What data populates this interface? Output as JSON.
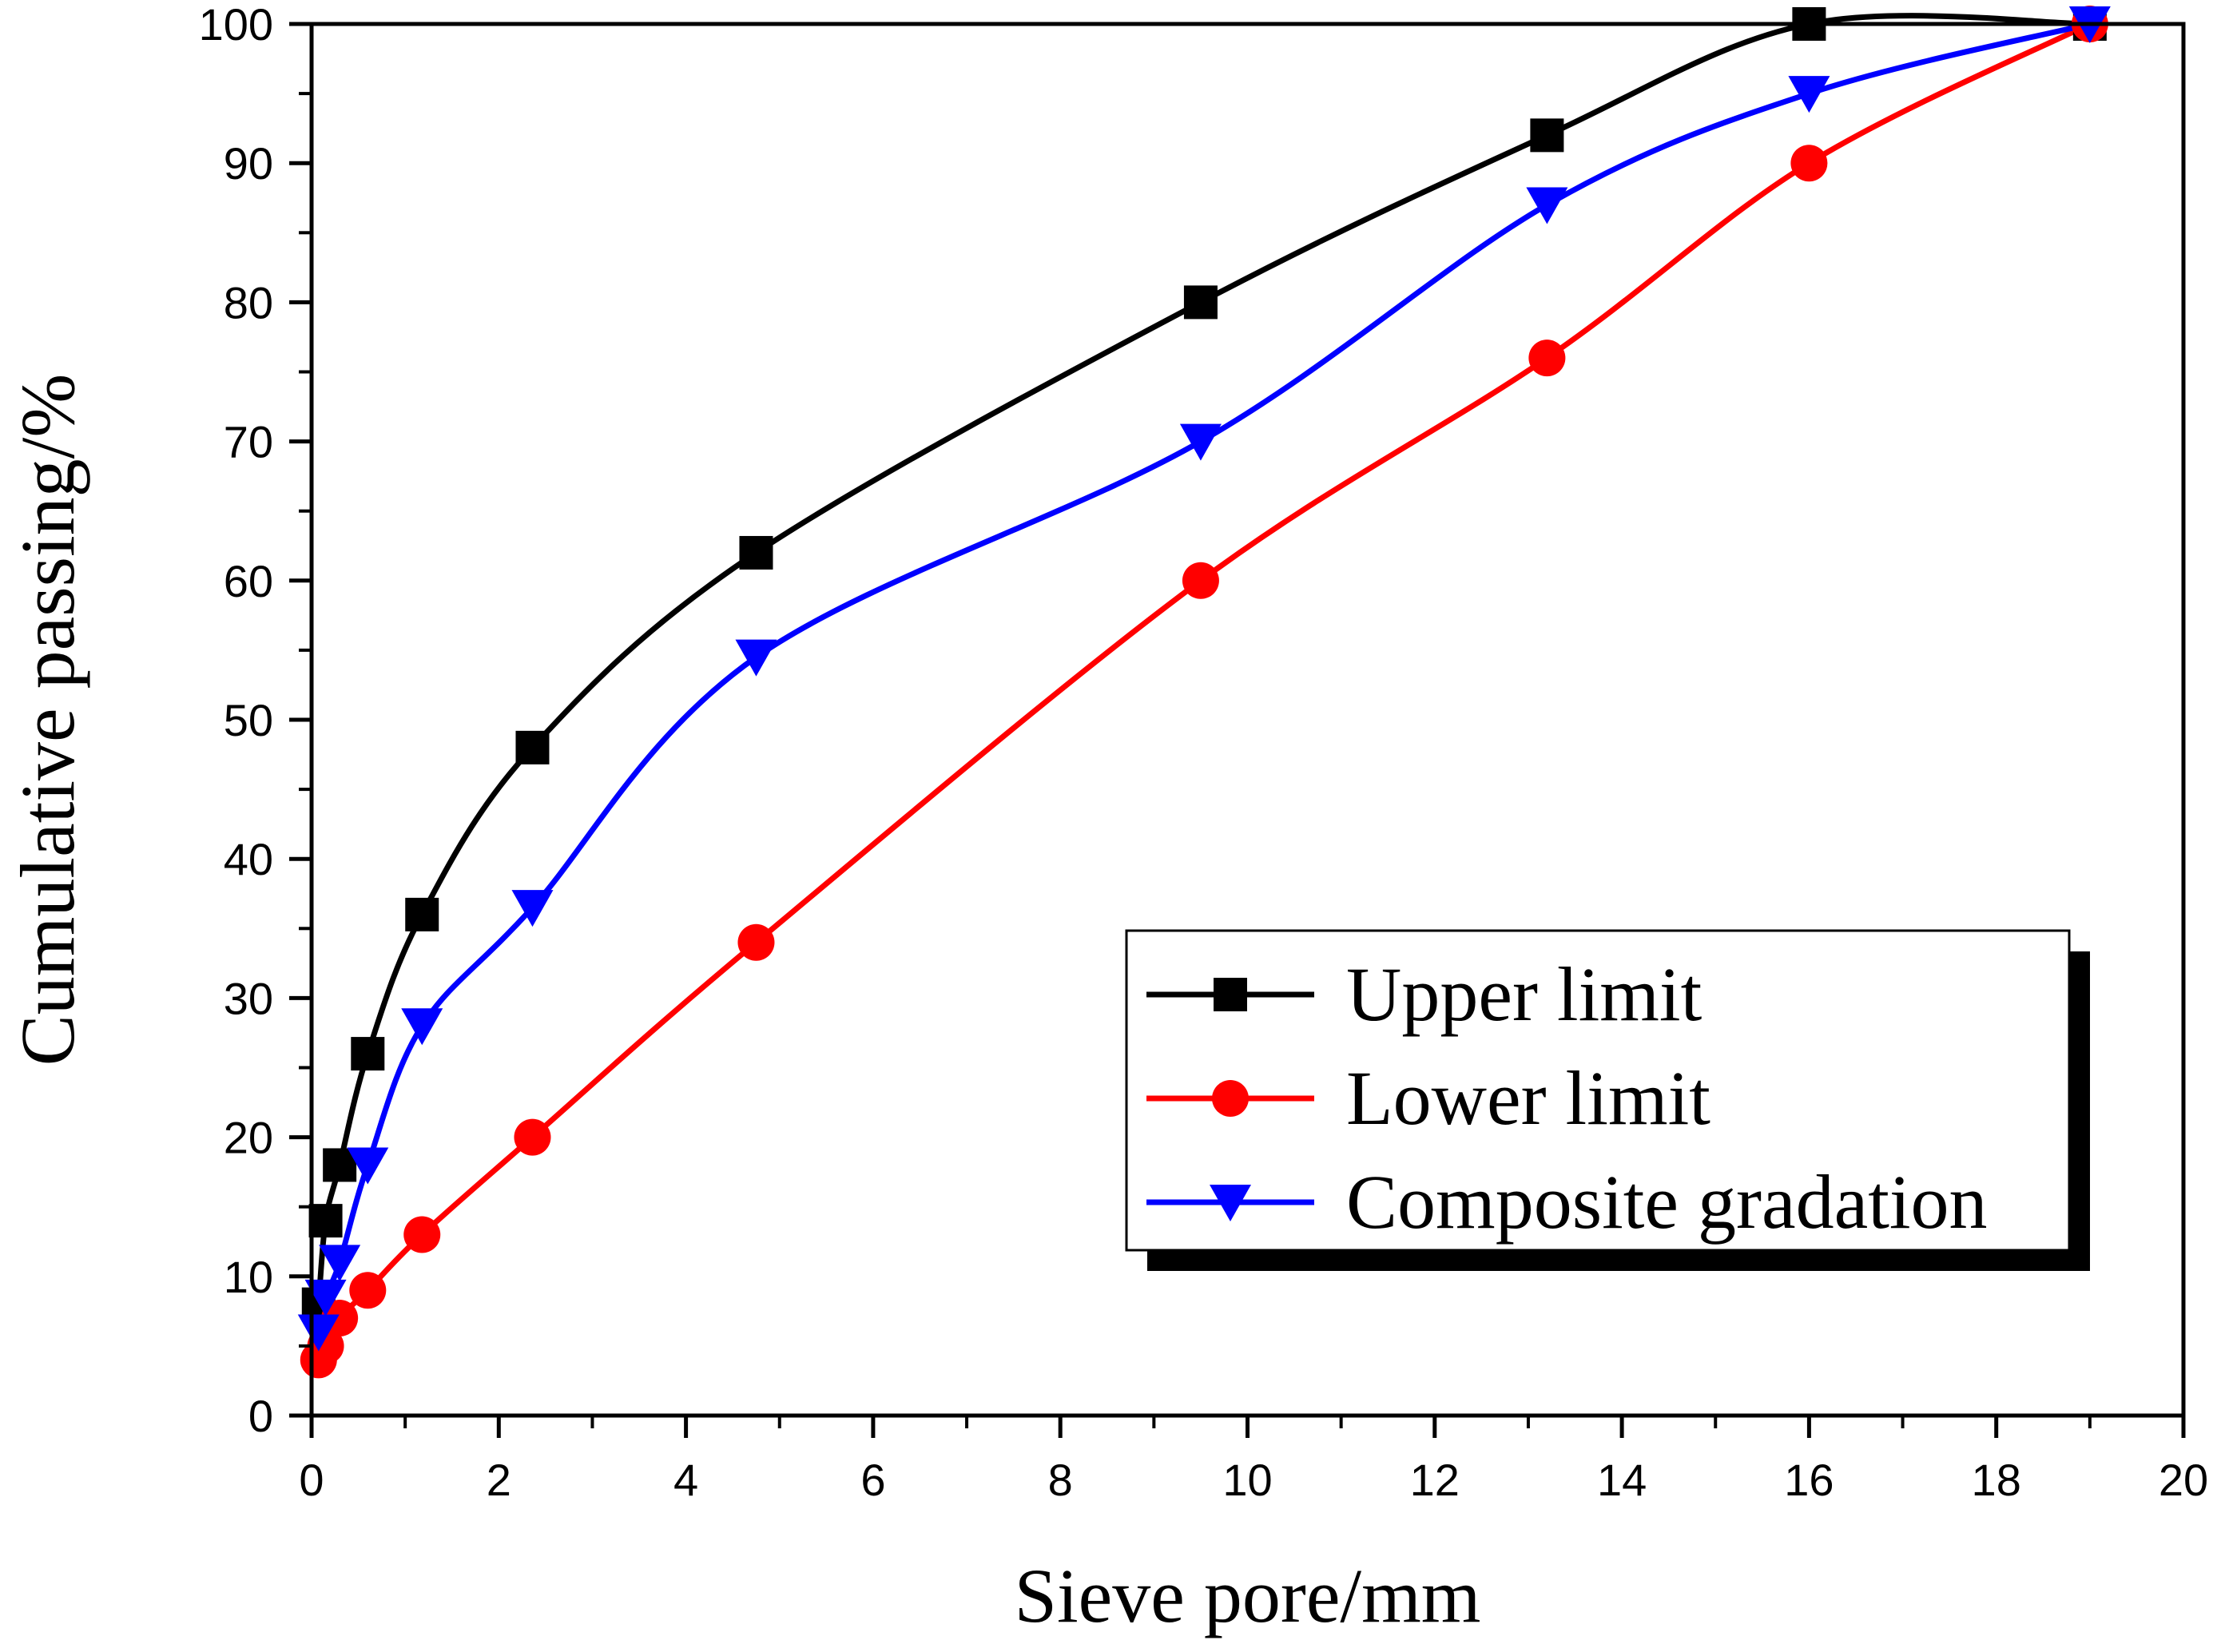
{
  "chart_data": {
    "type": "line",
    "title": "",
    "xlabel": "Sieve pore/mm",
    "ylabel": "Cumulative passing/%",
    "xlim": [
      0,
      20
    ],
    "ylim": [
      0,
      100
    ],
    "xticks": [
      0,
      2,
      4,
      6,
      8,
      10,
      12,
      14,
      16,
      18,
      20
    ],
    "yticks": [
      0,
      10,
      20,
      30,
      40,
      50,
      60,
      70,
      80,
      90,
      100
    ],
    "grid": false,
    "legend_position": "lower-right",
    "x": [
      0.075,
      0.15,
      0.3,
      0.6,
      1.18,
      2.36,
      4.75,
      9.5,
      13.2,
      16,
      19
    ],
    "series": [
      {
        "name": "Upper limit",
        "color": "#000000",
        "marker": "square",
        "values": [
          8,
          14,
          18,
          26,
          36,
          48,
          62,
          80,
          92,
          100,
          100
        ]
      },
      {
        "name": "Lower limit",
        "color": "#ff0000",
        "marker": "circle",
        "values": [
          4,
          5,
          7,
          9,
          13,
          20,
          34,
          60,
          76,
          90,
          100
        ]
      },
      {
        "name": "Composite gradation",
        "color": "#0000ff",
        "marker": "triangle-down",
        "values": [
          6,
          8.5,
          11,
          18,
          28,
          36.5,
          54.5,
          70,
          87,
          95,
          100
        ]
      }
    ]
  }
}
